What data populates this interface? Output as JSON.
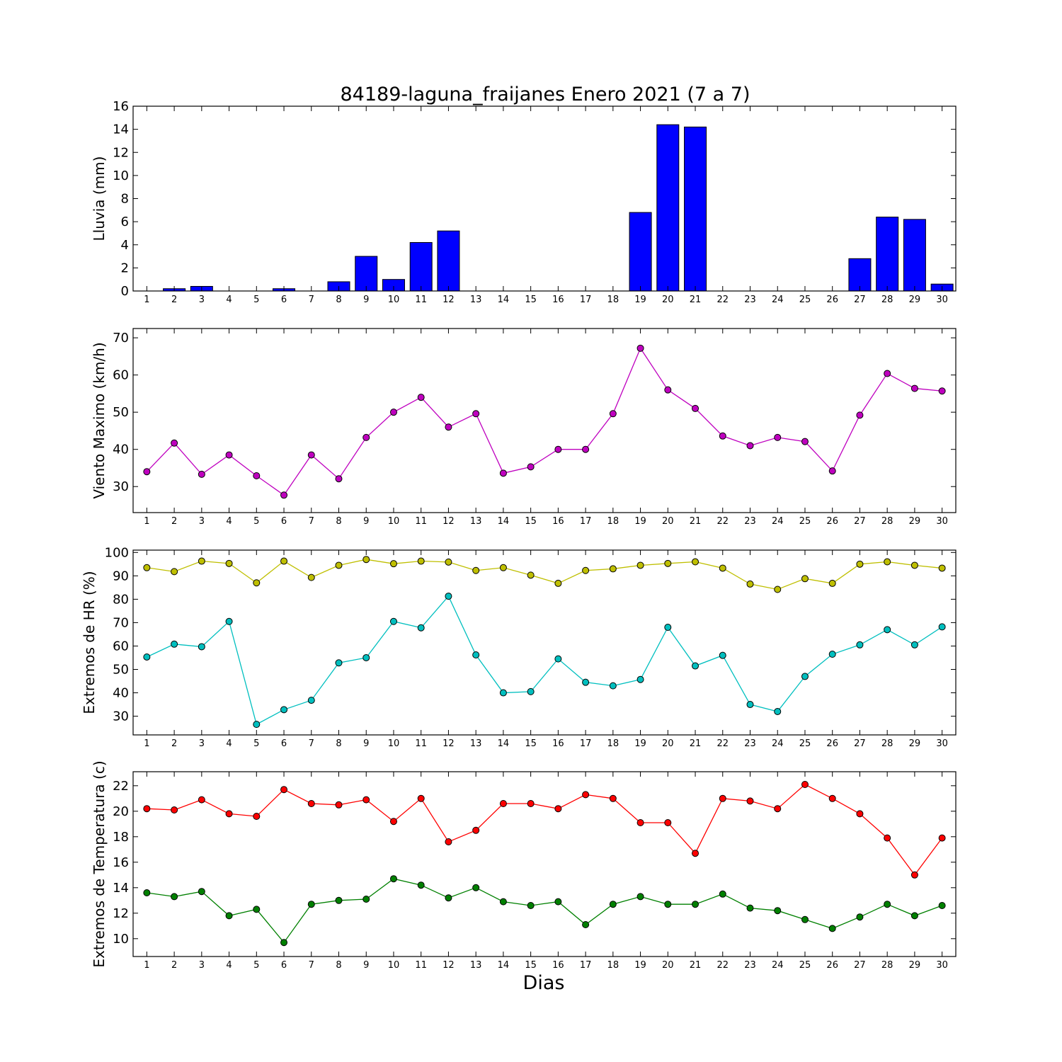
{
  "title": "84189-laguna_fraijanes Enero 2021  (7 a 7)",
  "xlabel": "Dias",
  "chart_data": [
    {
      "type": "bar",
      "ylabel": "Lluvia (mm)",
      "ylim": [
        0,
        16
      ],
      "yticks": [
        0,
        2,
        4,
        6,
        8,
        10,
        12,
        14,
        16
      ],
      "x": [
        1,
        2,
        3,
        4,
        5,
        6,
        7,
        8,
        9,
        10,
        11,
        12,
        13,
        14,
        15,
        16,
        17,
        18,
        19,
        20,
        21,
        22,
        23,
        24,
        25,
        26,
        27,
        28,
        29,
        30
      ],
      "series": [
        {
          "color": "#0000ff",
          "values": [
            0,
            0.2,
            0.4,
            0,
            0,
            0.2,
            0,
            0.8,
            3.0,
            1.0,
            4.2,
            5.2,
            0,
            0,
            0,
            0,
            0,
            0,
            6.8,
            14.4,
            14.2,
            0,
            0,
            0,
            0,
            0,
            2.8,
            6.4,
            6.2,
            0.6
          ]
        }
      ]
    },
    {
      "type": "line",
      "ylabel": "Viento Maximo (km/h)",
      "ylim": [
        23,
        72.5
      ],
      "yticks": [
        30,
        40,
        50,
        60,
        70
      ],
      "x": [
        1,
        2,
        3,
        4,
        5,
        6,
        7,
        8,
        9,
        10,
        11,
        12,
        13,
        14,
        15,
        16,
        17,
        18,
        19,
        20,
        21,
        22,
        23,
        24,
        25,
        26,
        27,
        28,
        29,
        30
      ],
      "series": [
        {
          "color": "#bf00bf",
          "values": [
            34.0,
            41.7,
            33.3,
            38.5,
            32.9,
            27.7,
            38.5,
            32.1,
            43.2,
            50.0,
            54.0,
            46.0,
            49.6,
            33.6,
            35.3,
            40.0,
            40.0,
            49.6,
            67.2,
            56.0,
            51.0,
            43.6,
            41.0,
            43.2,
            42.1,
            34.2,
            49.2,
            60.4,
            56.4,
            55.7
          ]
        }
      ]
    },
    {
      "type": "line",
      "ylabel": "Extremos de HR (%)",
      "ylim": [
        22,
        101
      ],
      "yticks": [
        30,
        40,
        50,
        60,
        70,
        80,
        90,
        100
      ],
      "x": [
        1,
        2,
        3,
        4,
        5,
        6,
        7,
        8,
        9,
        10,
        11,
        12,
        13,
        14,
        15,
        16,
        17,
        18,
        19,
        20,
        21,
        22,
        23,
        24,
        25,
        26,
        27,
        28,
        29,
        30
      ],
      "series": [
        {
          "color": "#bfbf00",
          "values": [
            93.5,
            91.8,
            96.3,
            95.3,
            87.0,
            96.3,
            89.3,
            94.5,
            97.0,
            95.2,
            96.3,
            95.9,
            92.3,
            93.5,
            90.3,
            86.8,
            92.3,
            93.0,
            94.5,
            95.3,
            96.0,
            93.3,
            86.5,
            84.2,
            88.8,
            86.8,
            95.0,
            96.0,
            94.5,
            93.3
          ]
        },
        {
          "color": "#00bfbf",
          "values": [
            55.3,
            60.8,
            59.7,
            70.5,
            26.5,
            32.8,
            36.8,
            52.8,
            55.0,
            70.5,
            67.8,
            81.3,
            56.2,
            40.0,
            40.5,
            54.5,
            44.5,
            43.0,
            45.7,
            68.0,
            51.5,
            56.0,
            35.0,
            32.0,
            47.0,
            56.5,
            60.5,
            67.0,
            60.5,
            68.2
          ]
        }
      ]
    },
    {
      "type": "line",
      "ylabel": "Extremos de Temperatura (c)",
      "ylim": [
        8.6,
        23.1
      ],
      "yticks": [
        10,
        12,
        14,
        16,
        18,
        20,
        22
      ],
      "x": [
        1,
        2,
        3,
        4,
        5,
        6,
        7,
        8,
        9,
        10,
        11,
        12,
        13,
        14,
        15,
        16,
        17,
        18,
        19,
        20,
        21,
        22,
        23,
        24,
        25,
        26,
        27,
        28,
        29,
        30
      ],
      "series": [
        {
          "color": "#ff0000",
          "values": [
            20.2,
            20.1,
            20.9,
            19.8,
            19.6,
            21.7,
            20.6,
            20.5,
            20.9,
            19.2,
            21.0,
            17.6,
            18.5,
            20.6,
            20.6,
            20.2,
            21.3,
            21.0,
            19.1,
            19.1,
            16.7,
            21.0,
            20.8,
            20.2,
            22.1,
            21.0,
            19.8,
            17.9,
            15.0,
            17.9
          ]
        },
        {
          "color": "#008000",
          "values": [
            13.6,
            13.3,
            13.7,
            11.8,
            12.3,
            9.7,
            12.7,
            13.0,
            13.1,
            14.7,
            14.2,
            13.2,
            14.0,
            12.9,
            12.6,
            12.9,
            11.1,
            12.7,
            13.3,
            12.7,
            12.7,
            13.5,
            12.4,
            12.2,
            11.5,
            10.8,
            11.7,
            12.7,
            11.8,
            12.6
          ]
        }
      ]
    }
  ]
}
